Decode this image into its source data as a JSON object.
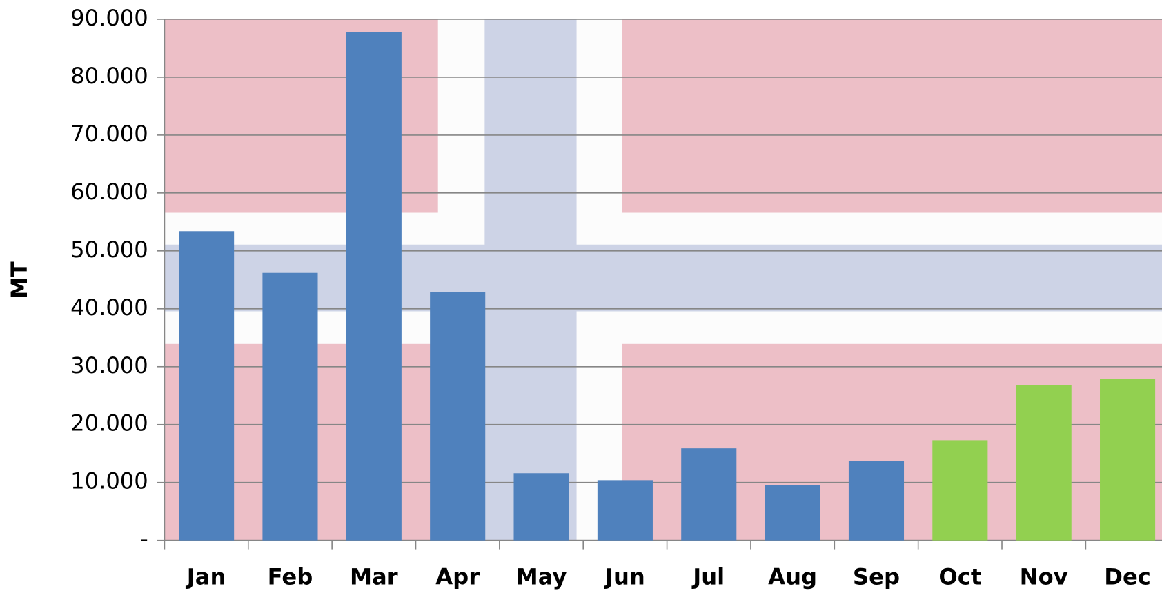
{
  "chart_data": {
    "type": "bar",
    "y_label": "MT",
    "categories": [
      "Jan",
      "Feb",
      "Mar",
      "Apr",
      "May",
      "Jun",
      "Jul",
      "Aug",
      "Sep",
      "Oct",
      "Nov",
      "Dec"
    ],
    "values": [
      53400,
      46200,
      87800,
      42900,
      11600,
      10400,
      15900,
      9600,
      13700,
      17300,
      26800,
      27900
    ],
    "colors": [
      "#4f81bd",
      "#4f81bd",
      "#4f81bd",
      "#4f81bd",
      "#4f81bd",
      "#4f81bd",
      "#4f81bd",
      "#4f81bd",
      "#4f81bd",
      "#92d050",
      "#92d050",
      "#92d050"
    ],
    "ylim": [
      0,
      90000
    ],
    "yticks": [
      {
        "value": 0,
        "label": "-"
      },
      {
        "value": 10000,
        "label": "10.000"
      },
      {
        "value": 20000,
        "label": "20.000"
      },
      {
        "value": 30000,
        "label": "30.000"
      },
      {
        "value": 40000,
        "label": "40.000"
      },
      {
        "value": 50000,
        "label": "50.000"
      },
      {
        "value": 60000,
        "label": "60.000"
      },
      {
        "value": 70000,
        "label": "70.000"
      },
      {
        "value": 80000,
        "label": "80.000"
      },
      {
        "value": 90000,
        "label": "90.000"
      }
    ],
    "grid": true
  }
}
